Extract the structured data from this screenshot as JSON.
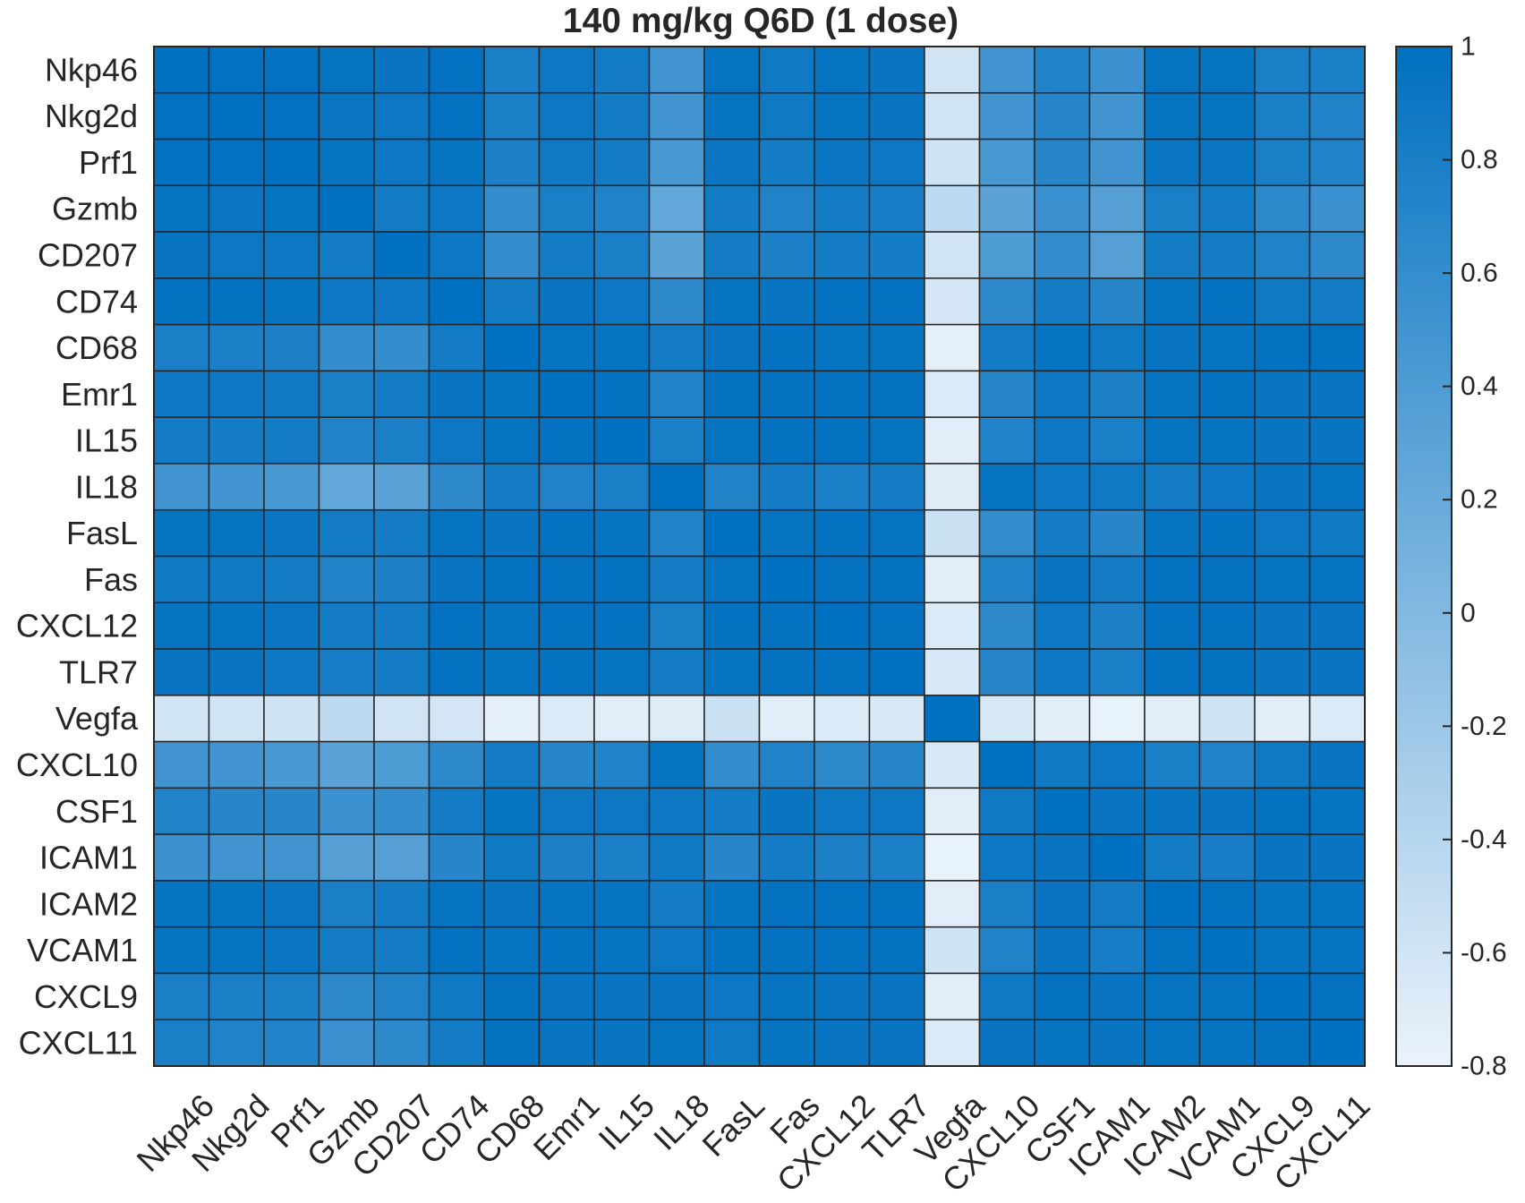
{
  "chart_data": {
    "type": "heatmap",
    "title": "140 mg/kg Q6D (1 dose)",
    "xlabel": "",
    "ylabel": "",
    "rows": [
      "Nkp46",
      "Nkg2d",
      "Prf1",
      "Gzmb",
      "CD207",
      "CD74",
      "CD68",
      "Emr1",
      "IL15",
      "IL18",
      "FasL",
      "Fas",
      "CXCL12",
      "TLR7",
      "Vegfa",
      "CXCL10",
      "CSF1",
      "ICAM1",
      "ICAM2",
      "VCAM1",
      "CXCL9",
      "CXCL11"
    ],
    "columns": [
      "Nkp46",
      "Nkg2d",
      "Prf1",
      "Gzmb",
      "CD207",
      "CD74",
      "CD68",
      "Emr1",
      "IL15",
      "IL18",
      "FasL",
      "Fas",
      "CXCL12",
      "TLR7",
      "Vegfa",
      "CXCL10",
      "CSF1",
      "ICAM1",
      "ICAM2",
      "VCAM1",
      "CXCL9",
      "CXCL11"
    ],
    "values": [
      [
        1.0,
        0.98,
        0.98,
        0.95,
        0.93,
        0.97,
        0.8,
        0.9,
        0.85,
        0.5,
        0.95,
        0.88,
        0.95,
        0.93,
        -0.6,
        0.5,
        0.75,
        0.55,
        0.95,
        0.95,
        0.8,
        0.8
      ],
      [
        0.98,
        1.0,
        0.98,
        0.92,
        0.9,
        0.97,
        0.8,
        0.9,
        0.85,
        0.5,
        0.95,
        0.88,
        0.95,
        0.93,
        -0.6,
        0.5,
        0.7,
        0.5,
        0.95,
        0.95,
        0.8,
        0.75
      ],
      [
        0.98,
        0.98,
        1.0,
        0.95,
        0.9,
        0.95,
        0.78,
        0.88,
        0.85,
        0.45,
        0.92,
        0.85,
        0.92,
        0.9,
        -0.58,
        0.45,
        0.7,
        0.5,
        0.92,
        0.92,
        0.8,
        0.75
      ],
      [
        0.95,
        0.92,
        0.95,
        1.0,
        0.85,
        0.9,
        0.6,
        0.8,
        0.75,
        0.25,
        0.85,
        0.75,
        0.85,
        0.82,
        -0.45,
        0.3,
        0.55,
        0.35,
        0.8,
        0.85,
        0.65,
        0.55
      ],
      [
        0.93,
        0.9,
        0.9,
        0.85,
        1.0,
        0.9,
        0.6,
        0.85,
        0.8,
        0.3,
        0.85,
        0.78,
        0.85,
        0.85,
        -0.6,
        0.4,
        0.6,
        0.35,
        0.85,
        0.85,
        0.75,
        0.65
      ],
      [
        0.97,
        0.97,
        0.95,
        0.9,
        0.9,
        1.0,
        0.85,
        0.93,
        0.9,
        0.65,
        0.95,
        0.93,
        0.97,
        0.97,
        -0.62,
        0.65,
        0.85,
        0.7,
        0.95,
        0.97,
        0.88,
        0.85
      ],
      [
        0.8,
        0.8,
        0.78,
        0.6,
        0.6,
        0.85,
        1.0,
        0.95,
        0.95,
        0.85,
        0.93,
        0.97,
        0.95,
        0.95,
        -0.75,
        0.85,
        0.95,
        0.88,
        0.93,
        0.95,
        0.97,
        0.97
      ],
      [
        0.9,
        0.9,
        0.88,
        0.8,
        0.85,
        0.93,
        0.95,
        1.0,
        0.97,
        0.75,
        0.97,
        0.97,
        0.97,
        0.97,
        -0.68,
        0.7,
        0.9,
        0.78,
        0.95,
        0.97,
        0.93,
        0.93
      ],
      [
        0.85,
        0.85,
        0.85,
        0.75,
        0.8,
        0.9,
        0.95,
        0.97,
        1.0,
        0.8,
        0.95,
        0.97,
        0.97,
        0.95,
        -0.72,
        0.75,
        0.9,
        0.8,
        0.95,
        0.95,
        0.93,
        0.93
      ],
      [
        0.5,
        0.5,
        0.45,
        0.25,
        0.3,
        0.65,
        0.85,
        0.75,
        0.8,
        1.0,
        0.75,
        0.85,
        0.8,
        0.85,
        -0.7,
        0.95,
        0.9,
        0.88,
        0.85,
        0.9,
        0.93,
        0.95
      ],
      [
        0.95,
        0.95,
        0.92,
        0.85,
        0.85,
        0.95,
        0.93,
        0.97,
        0.95,
        0.75,
        1.0,
        0.95,
        0.97,
        0.95,
        -0.55,
        0.6,
        0.85,
        0.7,
        0.95,
        0.97,
        0.9,
        0.88
      ],
      [
        0.88,
        0.88,
        0.85,
        0.75,
        0.78,
        0.93,
        0.97,
        0.97,
        0.97,
        0.85,
        0.95,
        1.0,
        0.97,
        0.97,
        -0.72,
        0.75,
        0.93,
        0.85,
        0.97,
        0.97,
        0.95,
        0.95
      ],
      [
        0.95,
        0.95,
        0.92,
        0.85,
        0.85,
        0.97,
        0.95,
        0.97,
        0.97,
        0.8,
        0.97,
        0.97,
        1.0,
        0.97,
        -0.68,
        0.65,
        0.9,
        0.78,
        0.97,
        0.97,
        0.93,
        0.93
      ],
      [
        0.93,
        0.93,
        0.9,
        0.82,
        0.85,
        0.97,
        0.95,
        0.97,
        0.95,
        0.85,
        0.95,
        0.97,
        0.97,
        1.0,
        -0.65,
        0.7,
        0.9,
        0.8,
        0.97,
        0.97,
        0.93,
        0.93
      ],
      [
        -0.6,
        -0.6,
        -0.58,
        -0.45,
        -0.6,
        -0.62,
        -0.75,
        -0.68,
        -0.72,
        -0.7,
        -0.55,
        -0.72,
        -0.68,
        -0.65,
        1.0,
        -0.65,
        -0.72,
        -0.78,
        -0.72,
        -0.58,
        -0.72,
        -0.68
      ],
      [
        0.5,
        0.5,
        0.45,
        0.3,
        0.4,
        0.65,
        0.85,
        0.7,
        0.75,
        0.95,
        0.6,
        0.75,
        0.65,
        0.7,
        -0.65,
        1.0,
        0.88,
        0.9,
        0.8,
        0.75,
        0.88,
        0.93
      ],
      [
        0.75,
        0.7,
        0.7,
        0.55,
        0.6,
        0.85,
        0.95,
        0.9,
        0.9,
        0.9,
        0.85,
        0.93,
        0.9,
        0.9,
        -0.72,
        0.88,
        1.0,
        0.93,
        0.93,
        0.93,
        0.97,
        0.95
      ],
      [
        0.55,
        0.5,
        0.5,
        0.35,
        0.35,
        0.7,
        0.88,
        0.78,
        0.8,
        0.88,
        0.7,
        0.85,
        0.78,
        0.8,
        -0.78,
        0.9,
        0.93,
        1.0,
        0.85,
        0.82,
        0.93,
        0.93
      ],
      [
        0.95,
        0.95,
        0.92,
        0.8,
        0.85,
        0.95,
        0.93,
        0.95,
        0.95,
        0.85,
        0.95,
        0.97,
        0.97,
        0.97,
        -0.72,
        0.8,
        0.93,
        0.85,
        1.0,
        0.97,
        0.95,
        0.95
      ],
      [
        0.95,
        0.95,
        0.92,
        0.85,
        0.85,
        0.97,
        0.95,
        0.97,
        0.95,
        0.9,
        0.97,
        0.97,
        0.97,
        0.97,
        -0.58,
        0.75,
        0.93,
        0.82,
        0.97,
        1.0,
        0.95,
        0.95
      ],
      [
        0.8,
        0.8,
        0.8,
        0.65,
        0.75,
        0.88,
        0.97,
        0.93,
        0.93,
        0.93,
        0.9,
        0.95,
        0.93,
        0.93,
        -0.72,
        0.88,
        0.97,
        0.93,
        0.95,
        0.95,
        1.0,
        0.97
      ],
      [
        0.8,
        0.75,
        0.75,
        0.55,
        0.65,
        0.85,
        0.97,
        0.93,
        0.93,
        0.95,
        0.88,
        0.95,
        0.93,
        0.93,
        -0.68,
        0.93,
        0.95,
        0.93,
        0.95,
        0.95,
        0.97,
        1.0
      ]
    ],
    "colorbar": {
      "min": -0.8,
      "max": 1,
      "ticks": [
        "1",
        "0.8",
        "0.6",
        "0.4",
        "0.2",
        "0",
        "-0.2",
        "-0.4",
        "-0.6",
        "-0.8"
      ],
      "tick_values": [
        1,
        0.8,
        0.6,
        0.4,
        0.2,
        0,
        -0.2,
        -0.4,
        -0.6,
        -0.8
      ],
      "colormap": [
        "#ebf3fb",
        "#0070c0"
      ]
    },
    "grid": true
  }
}
